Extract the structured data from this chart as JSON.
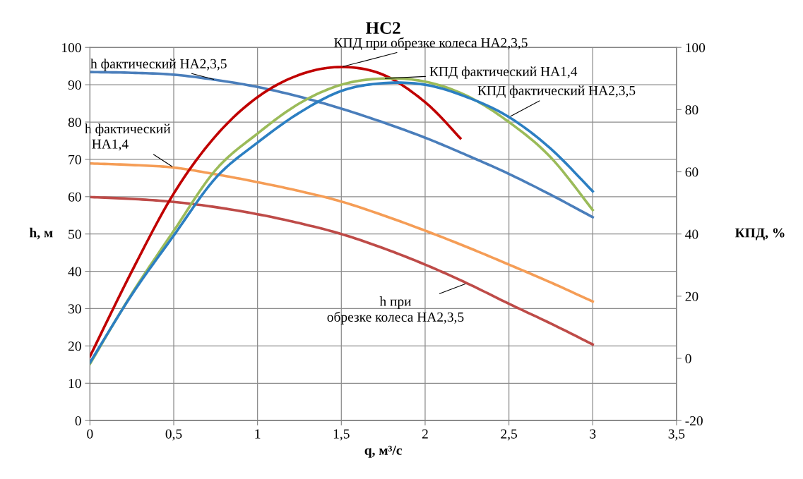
{
  "chart_data": {
    "type": "line",
    "title": "НС2",
    "xlabel": "q, м³/с",
    "ylabel": "h, м",
    "y2label": "КПД, %",
    "x": [
      0,
      0.25,
      0.5,
      0.75,
      1,
      1.25,
      1.5,
      1.75,
      2,
      2.25,
      2.5,
      2.75,
      3
    ],
    "series": [
      {
        "name": "h фактический НА2,3,5",
        "color": "#4a7ebb",
        "values": [
          93.4,
          93.2,
          92.7,
          91.3,
          89.4,
          86.8,
          83.6,
          79.9,
          75.8,
          71.1,
          66.1,
          60.5,
          54.5
        ]
      },
      {
        "name": "h фактический НА1,4",
        "color": "#f59d56",
        "values": [
          68.9,
          68.5,
          67.8,
          66.0,
          63.9,
          61.5,
          58.7,
          55.0,
          50.9,
          46.5,
          41.8,
          37.0,
          31.9
        ]
      },
      {
        "name": "h при обрезке колеса НА2,3,5",
        "color": "#be4b48",
        "values": [
          59.9,
          59.4,
          58.6,
          57.2,
          55.3,
          52.9,
          50.0,
          46.2,
          41.8,
          36.8,
          31.3,
          26.0,
          20.4
        ]
      },
      {
        "name": "КПД при обрезке колеса НА2,3,5",
        "color": "#c00000",
        "axis": "y2",
        "x": [
          0,
          0.25,
          0.5,
          0.75,
          1,
          1.25,
          1.5,
          1.75,
          2,
          2.21
        ],
        "values": [
          0.6,
          28,
          53,
          71.5,
          84,
          91.2,
          93.7,
          91.2,
          82.4,
          70.8
        ]
      },
      {
        "name": "КПД фактический НА1,4",
        "color": "#9bbb59",
        "axis": "y2",
        "values": [
          -1.8,
          20.8,
          41,
          60.6,
          72.3,
          82,
          88,
          90,
          89,
          84.4,
          76,
          64.6,
          47.7
        ]
      },
      {
        "name": "КПД фактический НА2,3,5",
        "color": "#2c7fc2",
        "axis": "y2",
        "values": [
          -1.4,
          20.5,
          39.5,
          58,
          69.4,
          79,
          86,
          88.5,
          88,
          84,
          77.6,
          67.4,
          53.7
        ]
      }
    ],
    "xlim": [
      0,
      3.5
    ],
    "xticks": [
      0,
      {
        "value": 0.5,
        "label": "0,5"
      },
      1,
      {
        "value": 1.5,
        "label": "1,5"
      },
      2,
      {
        "value": 2.5,
        "label": "2,5"
      },
      3,
      {
        "value": 3.5,
        "label": "3,5"
      }
    ],
    "ylim": [
      0,
      100
    ],
    "yticks": [
      0,
      10,
      20,
      30,
      40,
      50,
      60,
      70,
      80,
      90,
      100
    ],
    "y2lim": [
      -20,
      100
    ],
    "y2ticks": [
      -20,
      0,
      20,
      40,
      60,
      80,
      100
    ],
    "grid": true,
    "legend": false,
    "marker": "none",
    "line_style": "solid"
  }
}
